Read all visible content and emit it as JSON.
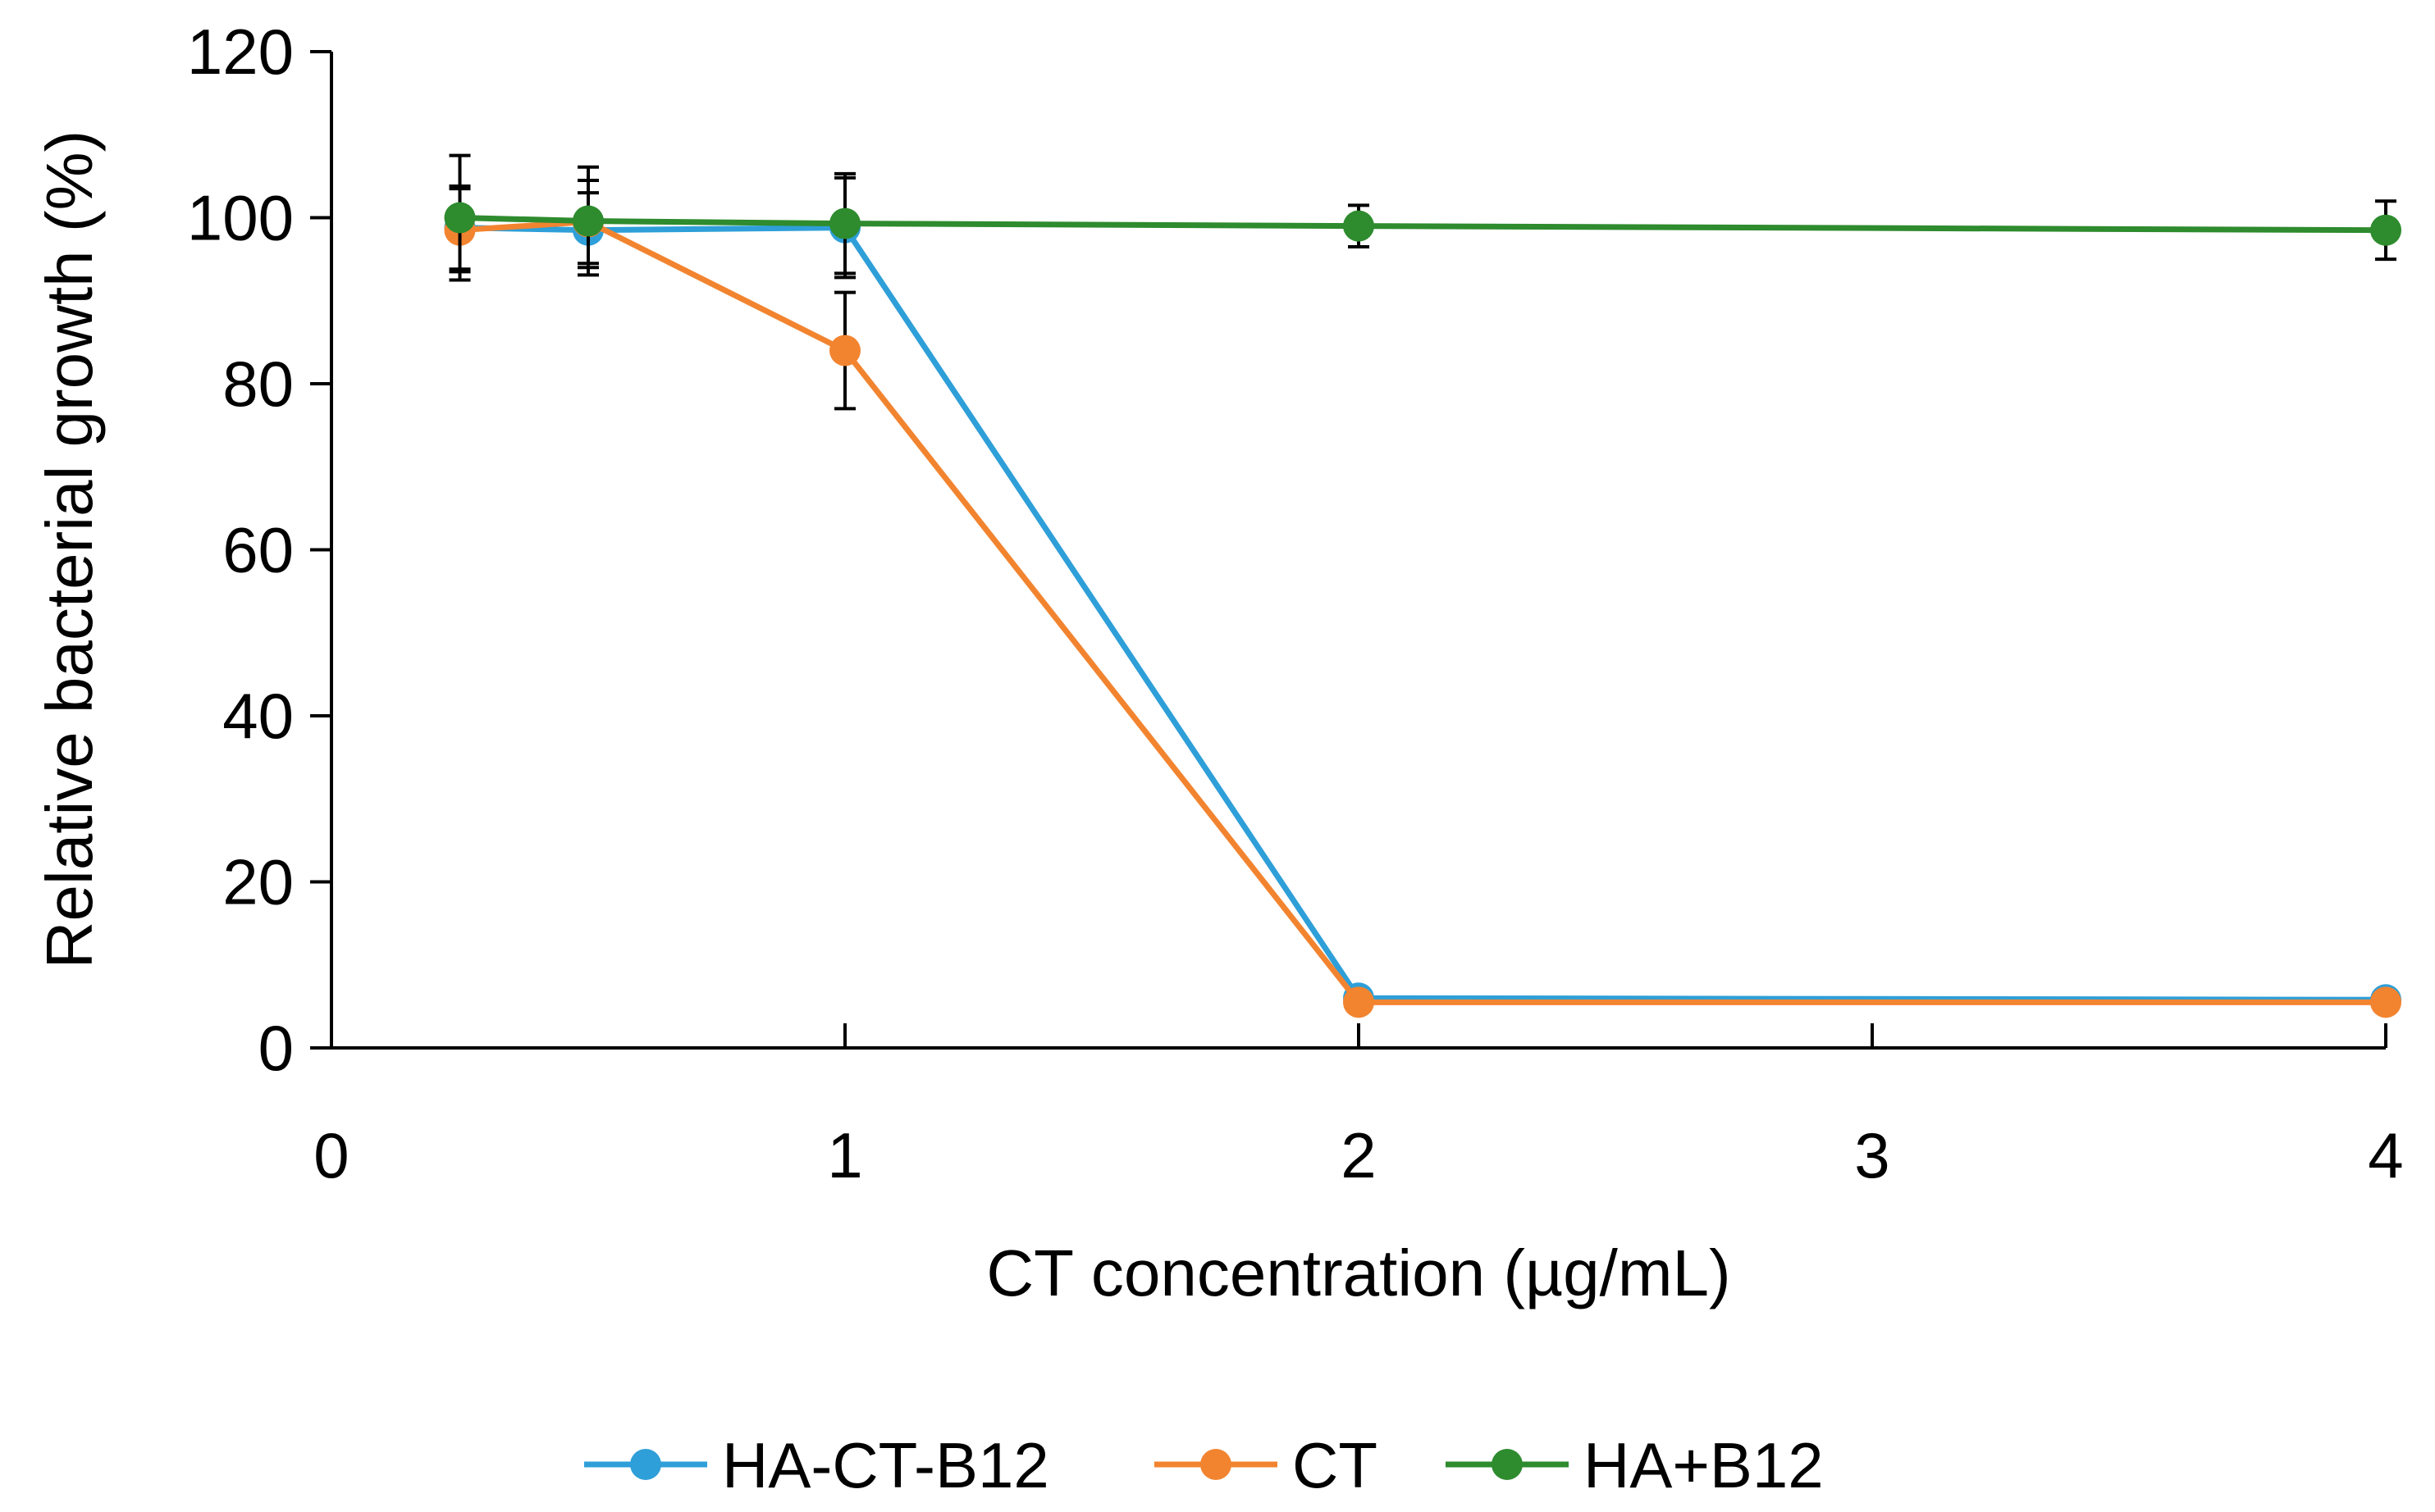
{
  "chart_data": {
    "type": "line",
    "title": "",
    "xlabel": "CT concentration (µg/mL)",
    "ylabel": "Relative bacterial growth (%)",
    "xlim": [
      0,
      4
    ],
    "ylim": [
      0,
      120
    ],
    "x_ticks": [
      "0",
      "1",
      "2",
      "3",
      "4"
    ],
    "y_ticks": [
      "0",
      "20",
      "40",
      "60",
      "80",
      "100",
      "120"
    ],
    "grid": false,
    "legend_position": "bottom",
    "series": [
      {
        "name": "HA-CT-B12",
        "color": "#2E9FD8",
        "x": [
          0.25,
          0.5,
          1,
          2,
          4
        ],
        "y": [
          98.8,
          98.5,
          98.8,
          6.0,
          5.8
        ],
        "error": [
          5.0,
          4.5,
          6.0,
          0.5,
          0.5
        ]
      },
      {
        "name": "CT",
        "color": "#F28430",
        "x": [
          0.25,
          0.5,
          1,
          2,
          4
        ],
        "y": [
          98.5,
          99.5,
          84.0,
          5.5,
          5.5
        ],
        "error": [
          5.0,
          5.0,
          7.0,
          0.5,
          0.5
        ]
      },
      {
        "name": "HA+B12",
        "color": "#2E8B2E",
        "x": [
          0.25,
          0.5,
          1,
          2,
          4
        ],
        "y": [
          100.0,
          99.6,
          99.3,
          99.0,
          98.5
        ],
        "error": [
          7.5,
          6.5,
          6.0,
          2.5,
          3.5
        ]
      }
    ]
  }
}
